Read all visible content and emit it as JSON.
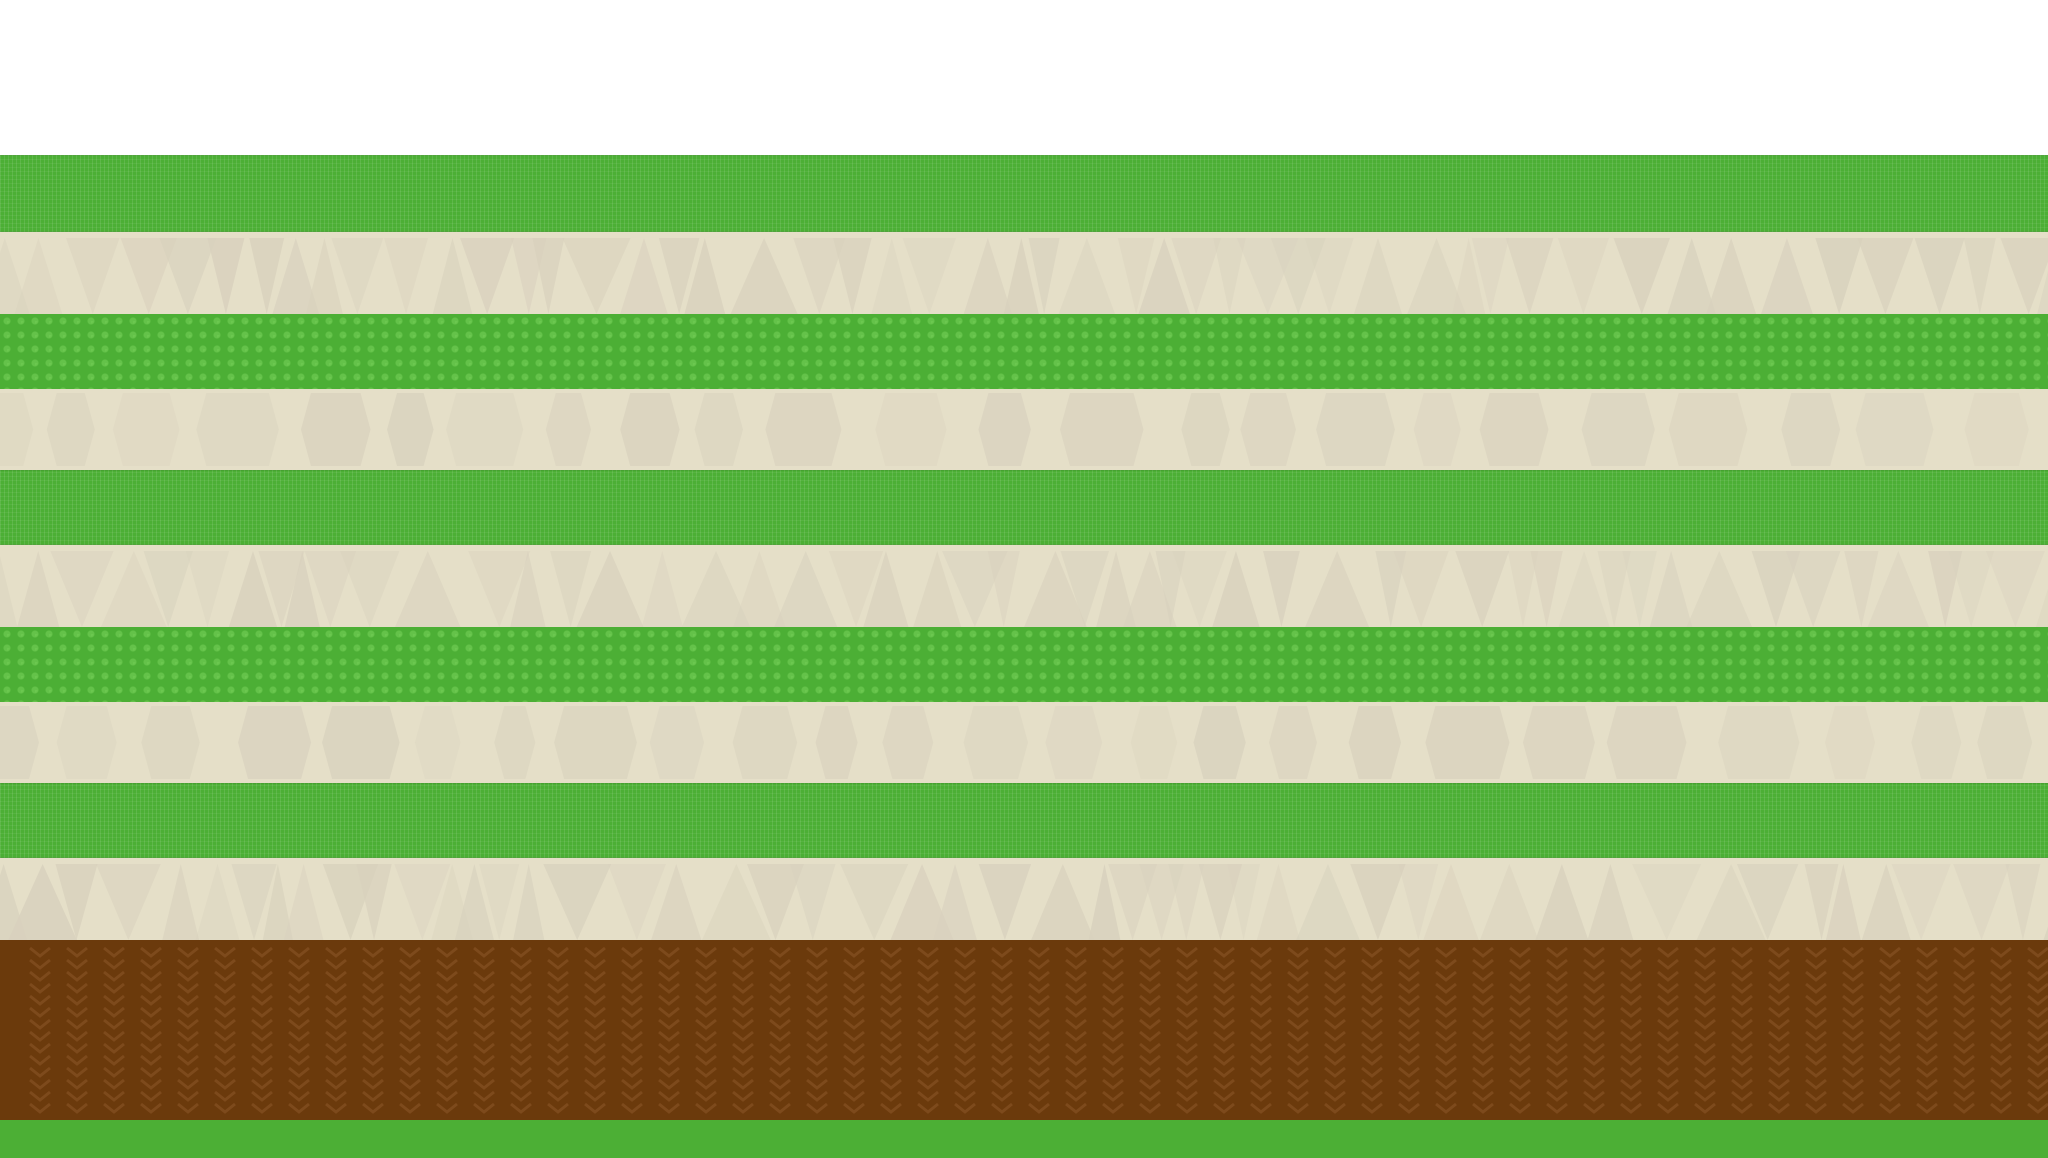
{
  "scene": {
    "colors": {
      "sky": "#ffffff",
      "grass": "#4caf35",
      "sand": "#e5dfc8",
      "sand_shadow": "#d8d1bd",
      "dirt": "#6b3a0c",
      "dirt_pattern": "#7d4a1c"
    },
    "tiles": [
      {
        "type": "grass",
        "pattern": "striped"
      },
      {
        "type": "sand",
        "pattern": "triangles"
      },
      {
        "type": "grass",
        "pattern": "diamond"
      },
      {
        "type": "sand",
        "pattern": "hexagons"
      },
      {
        "type": "grass",
        "pattern": "striped"
      },
      {
        "type": "sand",
        "pattern": "triangles"
      },
      {
        "type": "grass",
        "pattern": "diamond"
      },
      {
        "type": "sand",
        "pattern": "hexagons"
      },
      {
        "type": "grass",
        "pattern": "striped"
      },
      {
        "type": "sand",
        "pattern": "triangles"
      },
      {
        "type": "dirt",
        "pattern": "zigzag"
      },
      {
        "type": "grass",
        "pattern": "plain"
      }
    ]
  }
}
